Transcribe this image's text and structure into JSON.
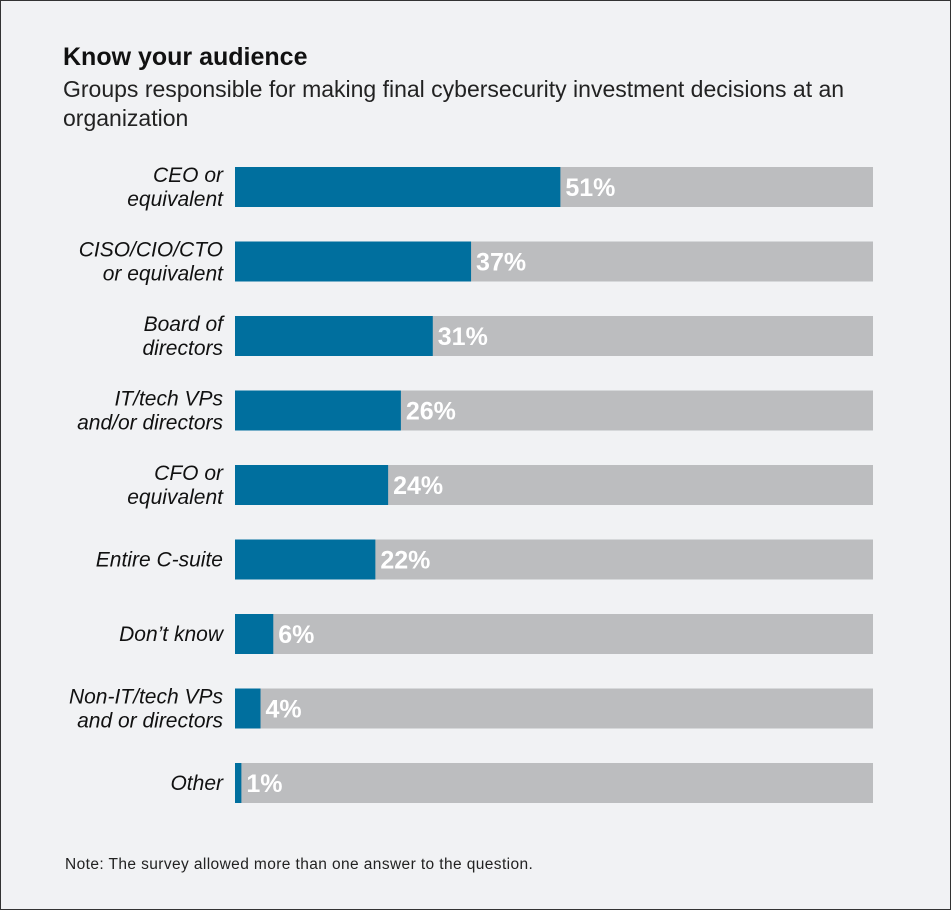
{
  "title": "Know your audience",
  "subtitle": "Groups responsible for making final cybersecurity investment decisions at an organization",
  "note": "Note: The survey allowed more than one answer to the question.",
  "colors": {
    "bar_fill": "#006f9e",
    "bar_track": "#bcbdbf",
    "value_label": "#ffffff",
    "category_label": "#111111",
    "background": "#f1f2f4"
  },
  "chart_data": {
    "type": "bar",
    "orientation": "horizontal",
    "categories": [
      [
        "CEO or",
        "equivalent"
      ],
      [
        "CISO/CIO/CTO",
        "or equivalent"
      ],
      [
        "Board of",
        "directors"
      ],
      [
        "IT/tech VPs",
        "and/or directors"
      ],
      [
        "CFO or",
        "equivalent"
      ],
      [
        "Entire C-suite"
      ],
      [
        "Don’t know"
      ],
      [
        "Non-IT/tech VPs",
        "and or directors"
      ],
      [
        "Other"
      ]
    ],
    "values": [
      51,
      37,
      31,
      26,
      24,
      22,
      6,
      4,
      1
    ],
    "value_labels": [
      "51%",
      "37%",
      "31%",
      "26%",
      "24%",
      "22%",
      "6%",
      "4%",
      "1%"
    ],
    "xlim": [
      0,
      100
    ],
    "grid": false,
    "legend": "none"
  }
}
